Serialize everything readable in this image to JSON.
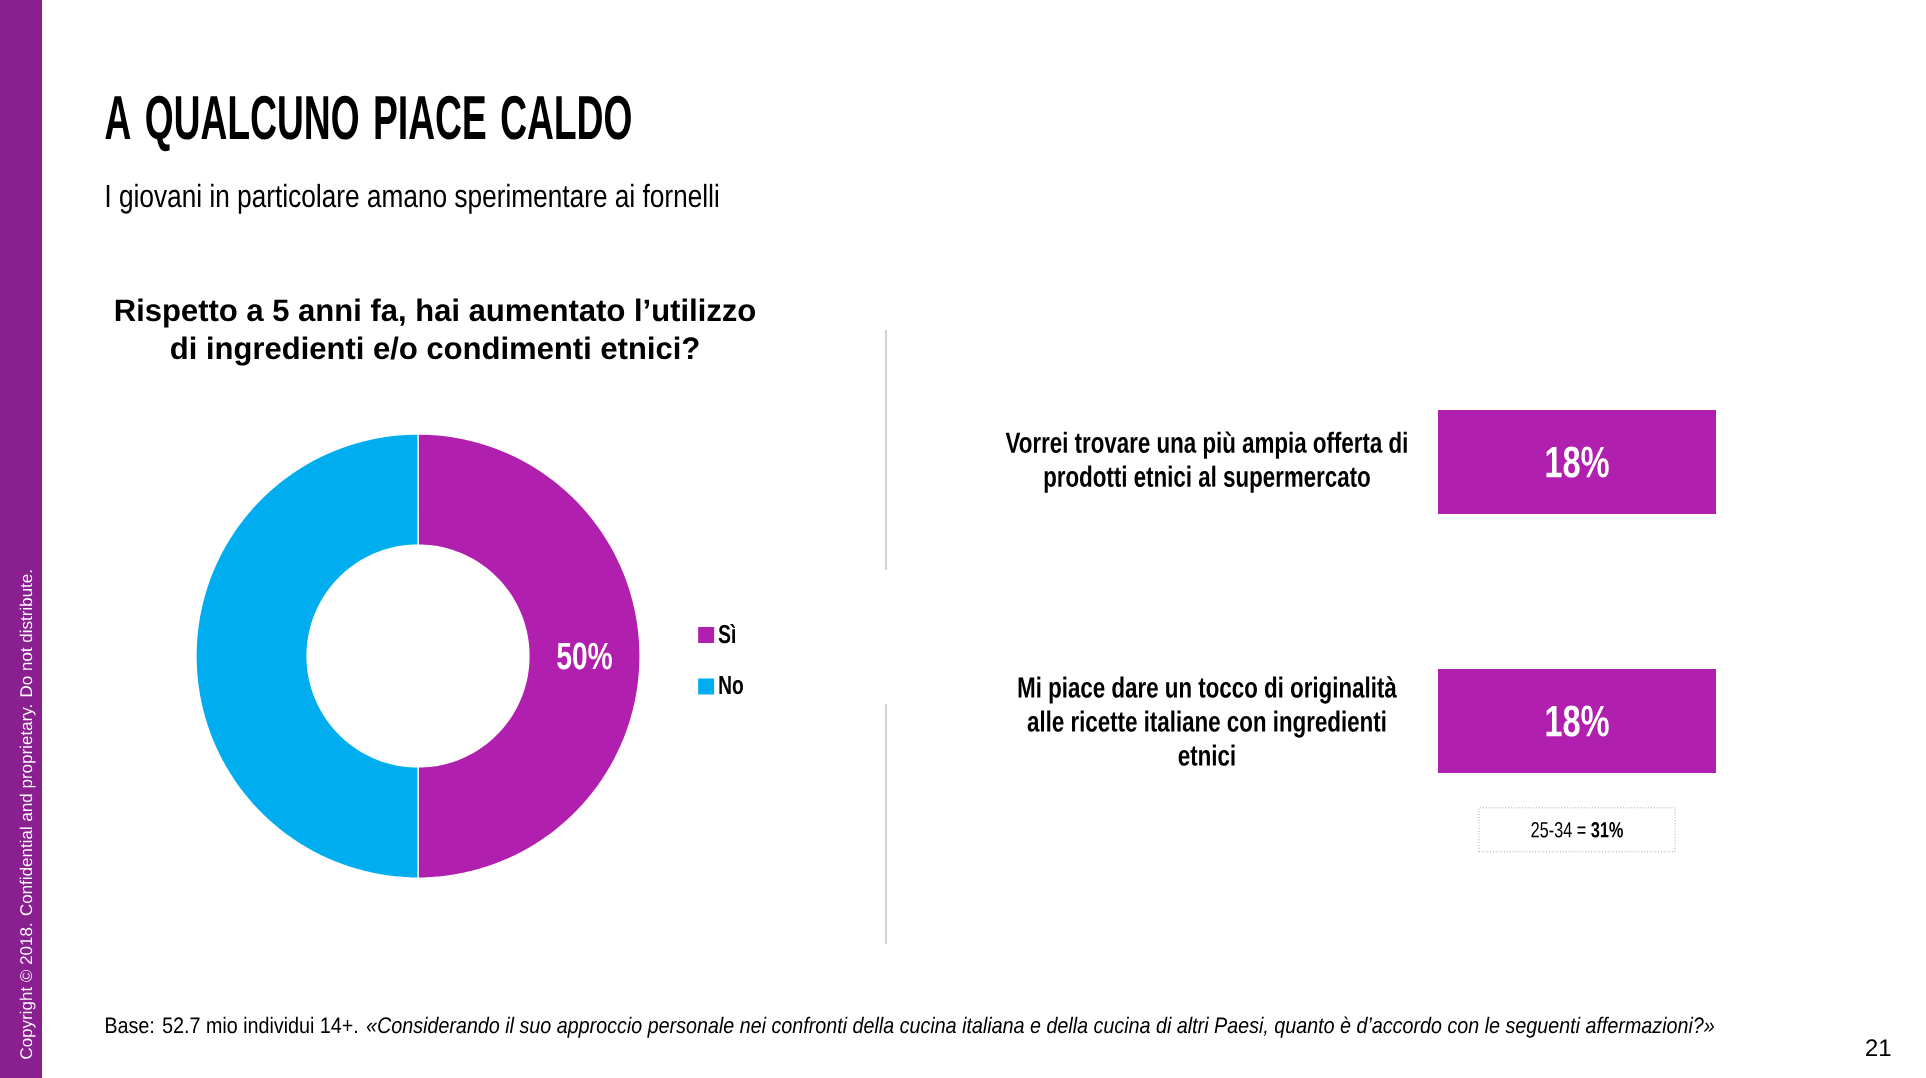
{
  "chart_data": [
    {
      "type": "donut",
      "title": "A QUALCUNO PIACE CALDO",
      "subtitle": "I giovani in particolare amano sperimentare ai fornelli",
      "categories": [
        "Sì",
        "No"
      ],
      "values": [
        50,
        50
      ],
      "colors": [
        "#b01fad",
        "#00aeef"
      ],
      "value_labels": [
        "50%",
        null
      ],
      "legend": "right",
      "annotations": [
        "Rispetto a 5 anni fa, hai aumentato l’utilizzo di ingredienti e/o condimenti etnici?",
        "Base: 52.7 mio individui 14+. *«Considerando il suo approccio personale nei confronti della cucina italiana e della cucina di altri Paesi, quanto è d’accordo con le seguenti affermazioni?»*",
        "Copyright © 2018. Confidential and proprietary. Do not distribute.",
        "21"
      ]
    },
    {
      "type": "bar",
      "orientation": "horizontal",
      "categories": [
        "Vorrei trovare una più ampia offerta di prodotti etnici al supermercato",
        "Mi piace dare un tocco di originalità alle ricette italiane con ingredienti etnici"
      ],
      "values": [
        18,
        18
      ],
      "value_labels": [
        "18%",
        "18%"
      ],
      "color": "#b01fad",
      "annotations": [
        "25-34 = **31%**"
      ]
    }
  ]
}
